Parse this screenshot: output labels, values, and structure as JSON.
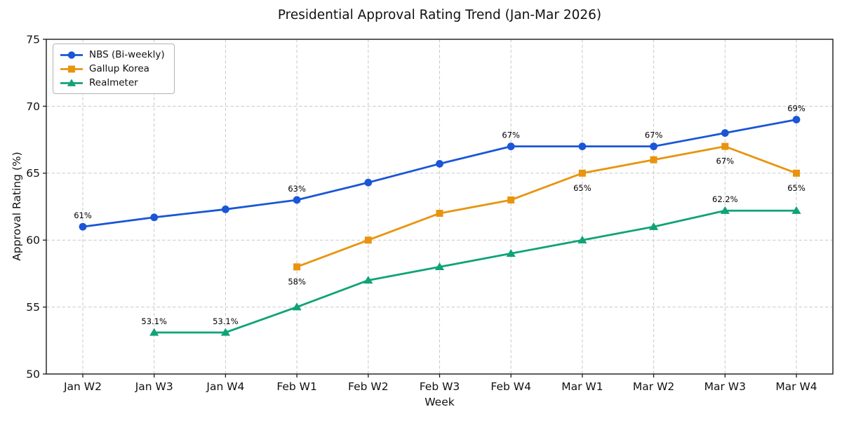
{
  "chart_data": {
    "type": "line",
    "title": "Presidential Approval Rating Trend (Jan-Mar 2026)",
    "xlabel": "Week",
    "ylabel": "Approval Rating (%)",
    "ylim": [
      50,
      75
    ],
    "yticks": [
      50,
      55,
      60,
      65,
      70,
      75
    ],
    "categories": [
      "Jan W2",
      "Jan W3",
      "Jan W4",
      "Feb W1",
      "Feb W2",
      "Feb W3",
      "Feb W4",
      "Mar W1",
      "Mar W2",
      "Mar W3",
      "Mar W4"
    ],
    "grid": true,
    "legend_position": "upper left",
    "axis_color": "#1a1a1a",
    "grid_color": "#c9c9c9",
    "annotation_color": "#000000",
    "series": [
      {
        "name": "NBS (Bi-weekly)",
        "color": "#1a56d6",
        "marker": "circle",
        "values": [
          61,
          61.7,
          62.3,
          63,
          64.3,
          65.7,
          67,
          67,
          67,
          68,
          69
        ],
        "annotations": [
          {
            "index": 0,
            "text": "61%",
            "placement": "above"
          },
          {
            "index": 3,
            "text": "63%",
            "placement": "above"
          },
          {
            "index": 6,
            "text": "67%",
            "placement": "above"
          },
          {
            "index": 8,
            "text": "67%",
            "placement": "above"
          },
          {
            "index": 10,
            "text": "69%",
            "placement": "above"
          }
        ]
      },
      {
        "name": "Gallup Korea",
        "color": "#e8940e",
        "marker": "square",
        "values": [
          null,
          null,
          null,
          58,
          60,
          62,
          63,
          65,
          66,
          67,
          65
        ],
        "annotations": [
          {
            "index": 3,
            "text": "58%",
            "placement": "below"
          },
          {
            "index": 7,
            "text": "65%",
            "placement": "below"
          },
          {
            "index": 9,
            "text": "67%",
            "placement": "below"
          },
          {
            "index": 10,
            "text": "65%",
            "placement": "below"
          }
        ]
      },
      {
        "name": "Realmeter",
        "color": "#0fa377",
        "marker": "triangle",
        "values": [
          null,
          53.1,
          53.1,
          55,
          57,
          58,
          59,
          60,
          61,
          62.2,
          62.2
        ],
        "annotations": [
          {
            "index": 1,
            "text": "53.1%",
            "placement": "above"
          },
          {
            "index": 2,
            "text": "53.1%",
            "placement": "above"
          },
          {
            "index": 9,
            "text": "62.2%",
            "placement": "above"
          }
        ]
      }
    ]
  }
}
